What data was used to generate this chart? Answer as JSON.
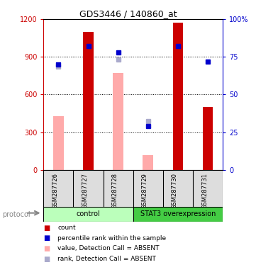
{
  "title": "GDS3446 / 140860_at",
  "samples": [
    "GSM287726",
    "GSM287727",
    "GSM287728",
    "GSM287729",
    "GSM287730",
    "GSM287731"
  ],
  "count_values": [
    0,
    1100,
    0,
    0,
    1170,
    500
  ],
  "value_absent": [
    430,
    0,
    770,
    120,
    0,
    0
  ],
  "percentile_rank": [
    70,
    82,
    78,
    29,
    82,
    72
  ],
  "rank_absent": [
    820,
    0,
    880,
    390,
    0,
    0
  ],
  "ylim_left": [
    0,
    1200
  ],
  "ylim_right": [
    0,
    100
  ],
  "yticks_left": [
    0,
    300,
    600,
    900,
    1200
  ],
  "yticks_right": [
    0,
    25,
    50,
    75,
    100
  ],
  "bar_width": 0.35,
  "bar_color_count": "#cc0000",
  "bar_color_absent": "#ffaaaa",
  "dot_color_percentile": "#0000cc",
  "dot_color_rank_absent": "#aaaacc",
  "left_axis_color": "#cc0000",
  "right_axis_color": "#0000cc",
  "ctrl_color": "#bbffbb",
  "stat3_color": "#44cc44",
  "legend_items": [
    {
      "label": "count",
      "color": "#cc0000"
    },
    {
      "label": "percentile rank within the sample",
      "color": "#0000cc"
    },
    {
      "label": "value, Detection Call = ABSENT",
      "color": "#ffaaaa"
    },
    {
      "label": "rank, Detection Call = ABSENT",
      "color": "#aaaacc"
    }
  ],
  "fig_width": 3.61,
  "fig_height": 3.84,
  "dpi": 100
}
